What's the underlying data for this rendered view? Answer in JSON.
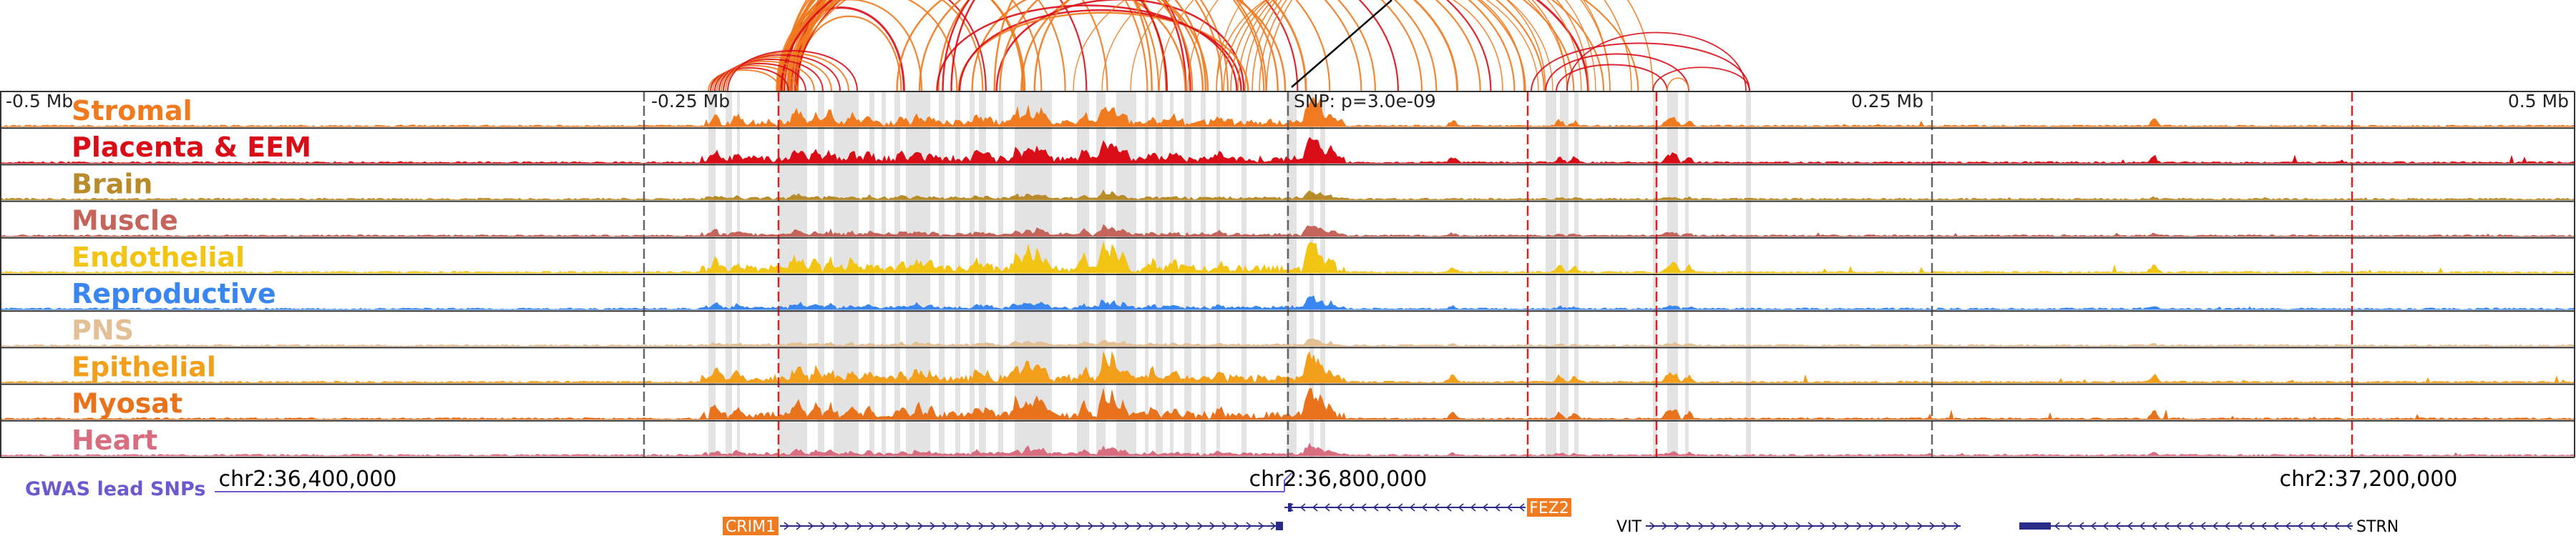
{
  "axis_ticks": [
    {
      "label": "-0.5 Mb",
      "anchor": "start",
      "pos": 0.0
    },
    {
      "label": "-0.25 Mb",
      "anchor": "start",
      "pos": 0.25
    },
    {
      "label": "SNP: p=3.0e-09",
      "anchor": "start",
      "pos": 0.5
    },
    {
      "label": "0.25 Mb",
      "anchor": "end",
      "pos": 0.75
    },
    {
      "label": "0.5 Mb",
      "anchor": "end",
      "pos": 1.0
    }
  ],
  "tracks": [
    {
      "label": "Stromal",
      "color": "#f07a1f"
    },
    {
      "label": "Placenta & EEM",
      "color": "#d90d17"
    },
    {
      "label": "Brain",
      "color": "#b88c2a"
    },
    {
      "label": "Muscle",
      "color": "#c4645a"
    },
    {
      "label": "Endothelial",
      "color": "#f2c414"
    },
    {
      "label": "Reproductive",
      "color": "#3a86f0"
    },
    {
      "label": "PNS",
      "color": "#e3bf95"
    },
    {
      "label": "Epithelial",
      "color": "#f2a01c"
    },
    {
      "label": "Myosat",
      "color": "#e8731c"
    },
    {
      "label": "Heart",
      "color": "#d96d80"
    }
  ],
  "coordinates": [
    "chr2:36,400,000",
    "chr2:36,800,000",
    "chr2:37,200,000"
  ],
  "gwas_label": "GWAS lead SNPs",
  "genes": [
    {
      "name": "CRIM1",
      "strand": "+",
      "boxed": true,
      "color": "#f07a1f"
    },
    {
      "name": "FEZ2",
      "strand": "-",
      "boxed": true,
      "color": "#f07a1f"
    },
    {
      "name": "VIT",
      "strand": "+",
      "boxed": false,
      "color": "#000000"
    },
    {
      "name": "STRN",
      "strand": "-",
      "boxed": false,
      "color": "#000000"
    }
  ],
  "colors": {
    "highlight": "#e3e3e3",
    "red_marker": "#e02020",
    "gwas_line": "#6a5acd",
    "gene_line": "#2a2a8a",
    "arc_orange": "#f07a1f",
    "arc_red": "#d90d17"
  }
}
